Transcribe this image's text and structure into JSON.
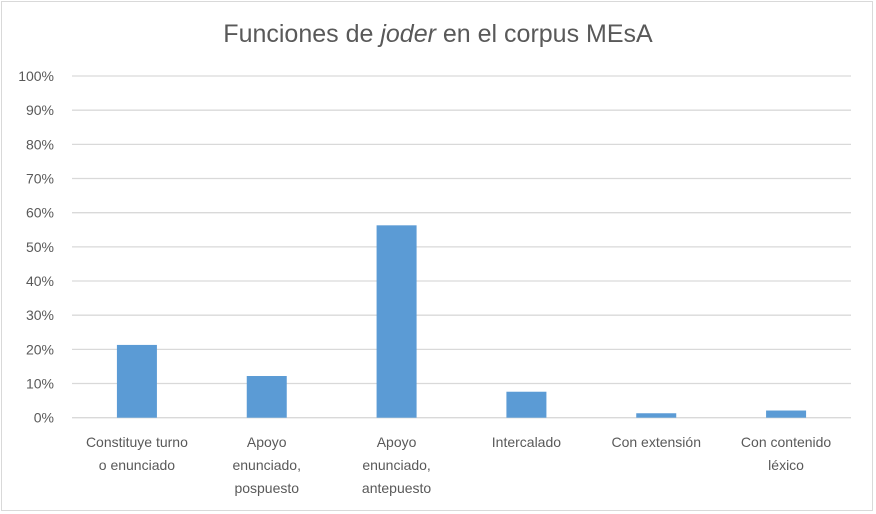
{
  "chart_data": {
    "type": "bar",
    "title_parts": [
      "Funciones de ",
      "joder",
      " en el corpus MEsA"
    ],
    "categories": [
      [
        "Constituye turno",
        "o enunciado"
      ],
      [
        "Apoyo",
        "enunciado,",
        "pospuesto"
      ],
      [
        "Apoyo",
        "enunciado,",
        "antepuesto"
      ],
      [
        "Intercalado"
      ],
      [
        "Con extensión"
      ],
      [
        "Con contenido",
        "léxico"
      ]
    ],
    "values": [
      21.3,
      12.2,
      56.3,
      7.6,
      1.3,
      2.1
    ],
    "ylim": [
      0,
      100
    ],
    "yticks": [
      "0%",
      "10%",
      "20%",
      "30%",
      "40%",
      "50%",
      "60%",
      "70%",
      "80%",
      "90%",
      "100%"
    ],
    "grid": true,
    "bar_color": "#5b9bd5",
    "grid_color": "#d9d9d9"
  }
}
